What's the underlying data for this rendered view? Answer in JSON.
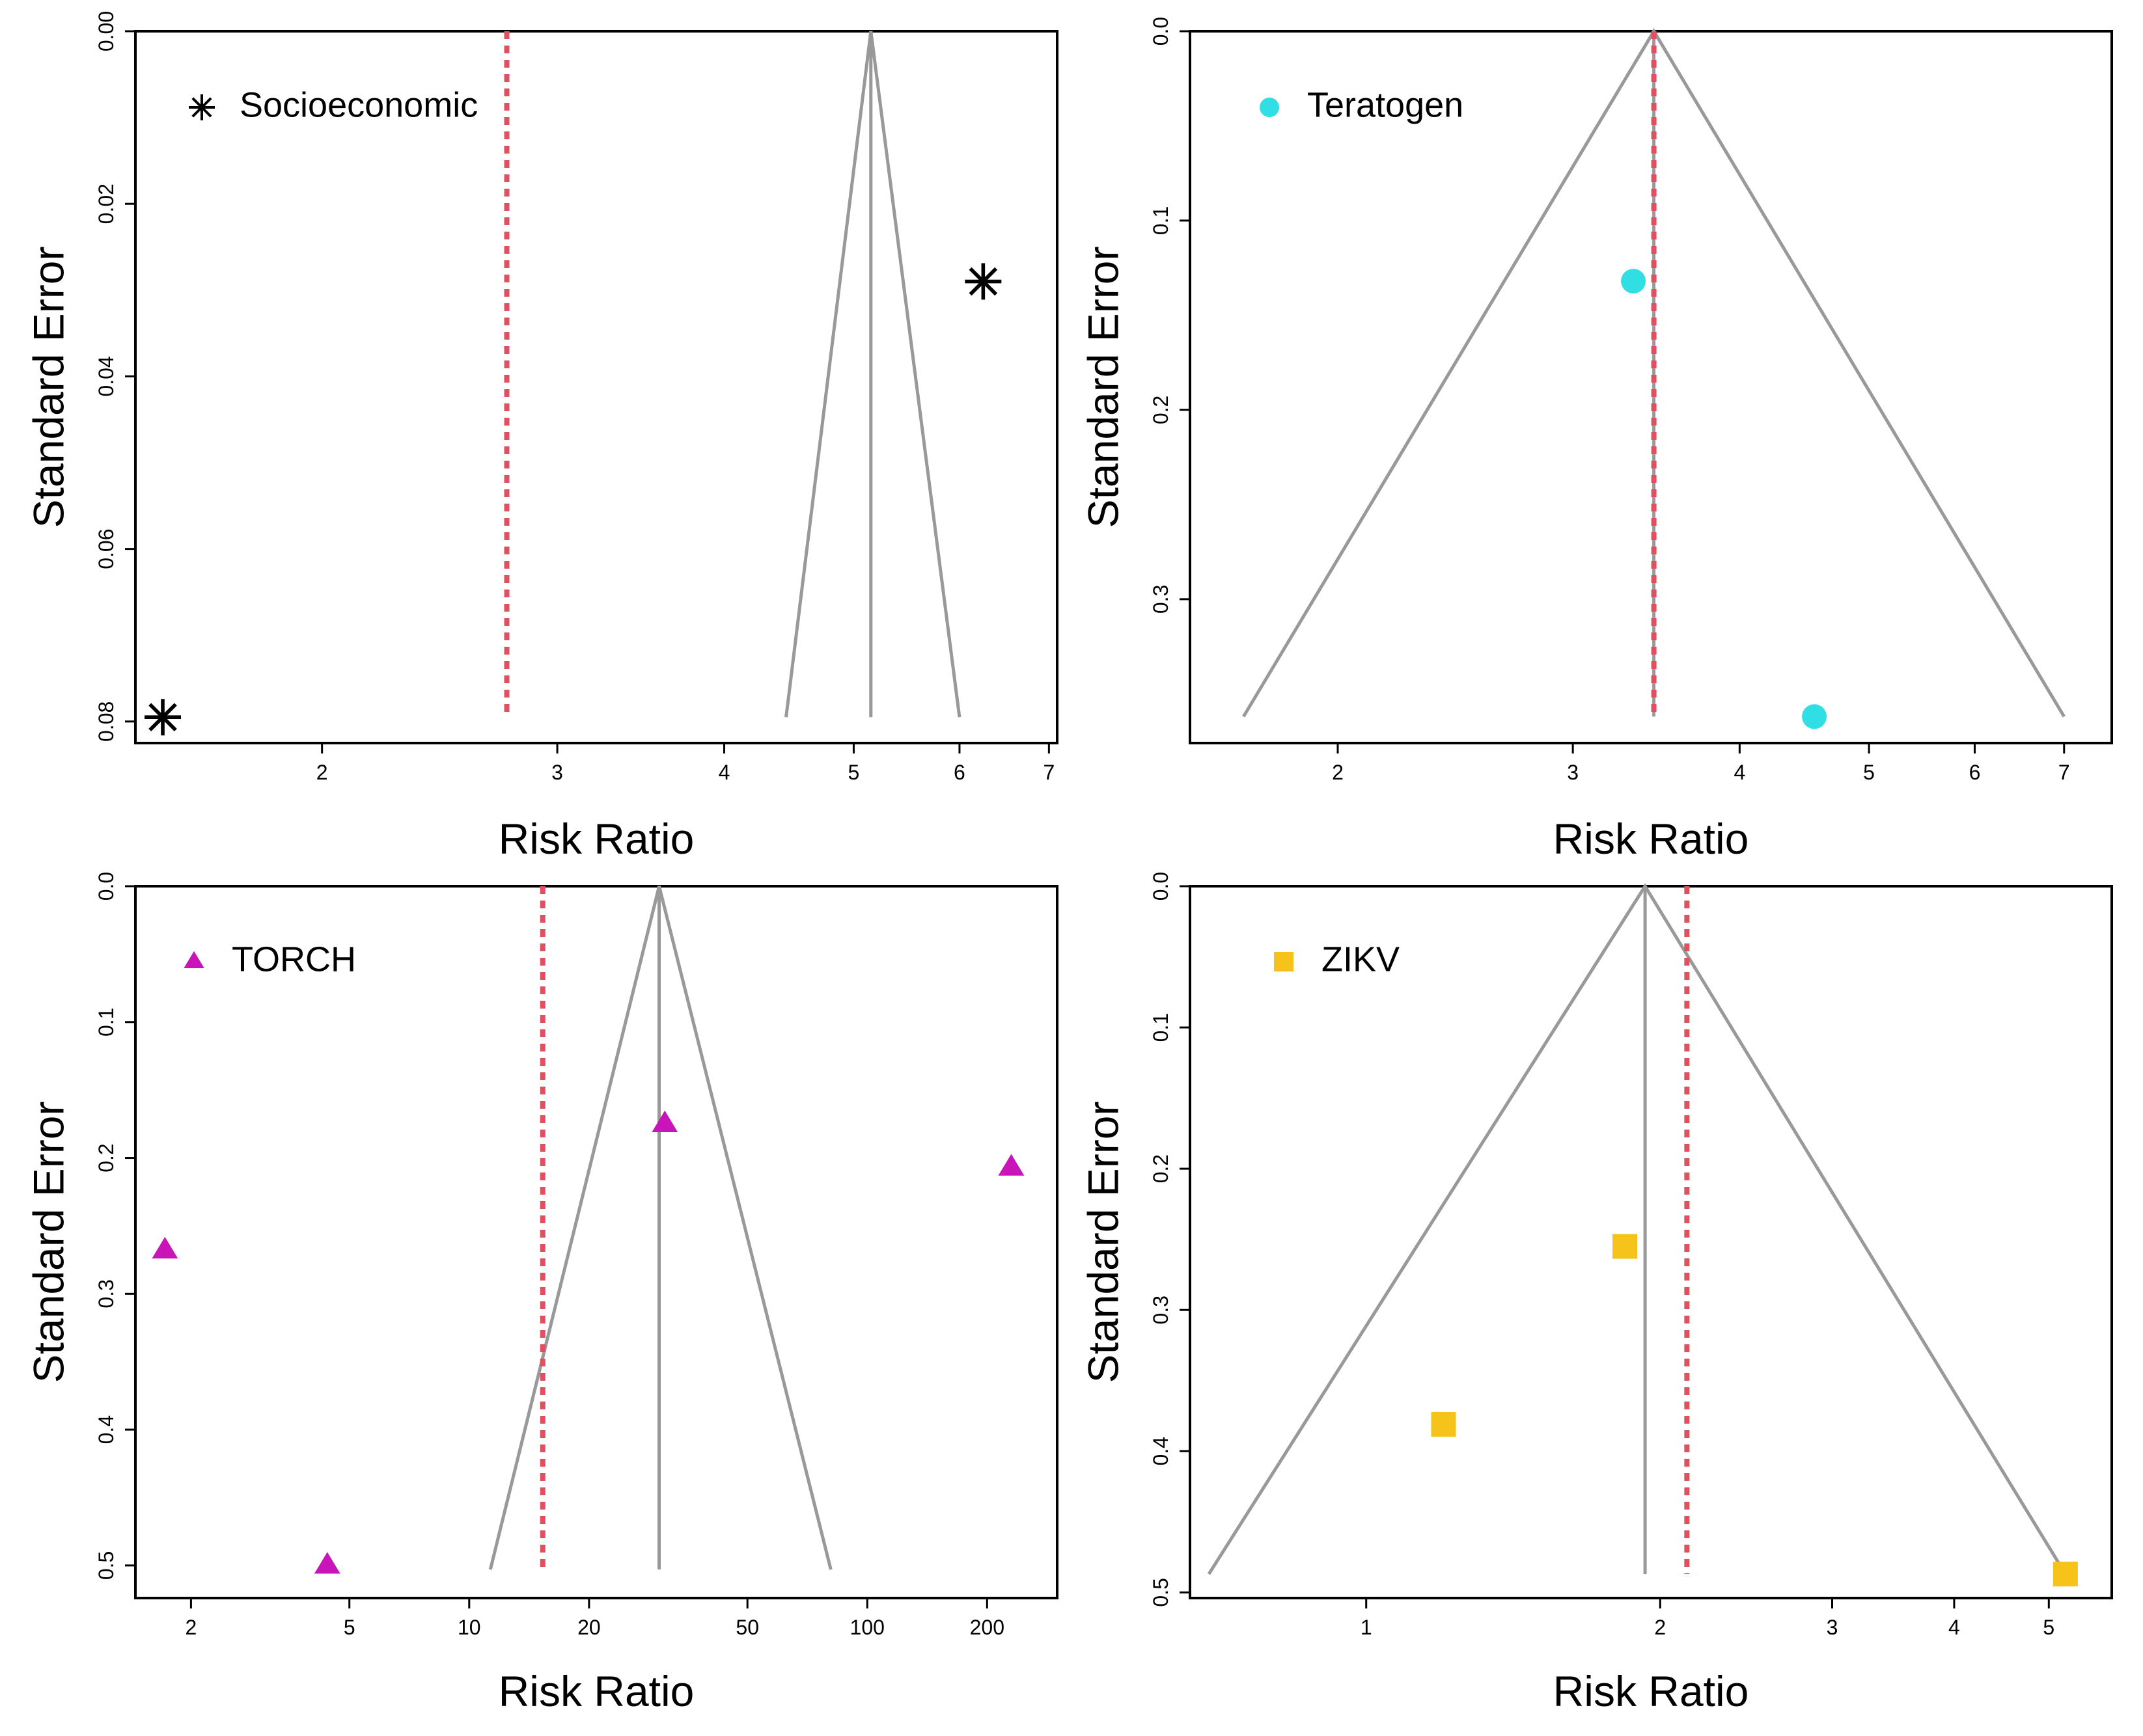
{
  "chart_data": [
    {
      "type": "scatter",
      "subtype": "funnel",
      "xscale": "log",
      "xlabel": "Risk Ratio",
      "ylabel": "Standard Error",
      "xlim": [
        1.45,
        7.1
      ],
      "ylim": [
        0.0825,
        0.0
      ],
      "xticks": [
        2,
        3,
        4,
        5,
        6,
        7
      ],
      "yticks": [
        0.0,
        0.02,
        0.04,
        0.06,
        0.08
      ],
      "ytick_labels": [
        "0.00",
        "0.02",
        "0.04",
        "0.06",
        "0.08"
      ],
      "legend": {
        "label": "Socioeconomic",
        "marker": "asterisk",
        "color": "#000000",
        "placement": "top-left"
      },
      "points": [
        {
          "x": 1.52,
          "y": 0.0795
        },
        {
          "x": 6.25,
          "y": 0.029
        }
      ],
      "funnel": {
        "center": 5.15,
        "base_left": 4.45,
        "base_right": 6.0,
        "se_max": 0.0795,
        "color": "#999999"
      },
      "pooled_line": {
        "x": 2.75,
        "color": "#e0505e",
        "style": "dotted"
      }
    },
    {
      "type": "scatter",
      "subtype": "funnel",
      "xscale": "log",
      "xlabel": "Risk Ratio",
      "ylabel": "Standard Error",
      "xlim": [
        1.55,
        7.6
      ],
      "ylim": [
        0.376,
        0.0
      ],
      "xticks": [
        2,
        3,
        4,
        5,
        6,
        7
      ],
      "yticks": [
        0.0,
        0.1,
        0.2,
        0.3
      ],
      "ytick_labels": [
        "0.0",
        "0.1",
        "0.2",
        "0.3"
      ],
      "legend": {
        "label": "Teratogen",
        "marker": "circle",
        "color": "#30dfe3",
        "placement": "top-left"
      },
      "points": [
        {
          "x": 3.33,
          "y": 0.132
        },
        {
          "x": 4.55,
          "y": 0.362
        }
      ],
      "funnel": {
        "center": 3.45,
        "base_left": 1.7,
        "base_right": 7.0,
        "se_max": 0.362,
        "color": "#999999"
      },
      "pooled_line": {
        "x": 3.45,
        "color": "#e0505e",
        "style": "dotted"
      }
    },
    {
      "type": "scatter",
      "subtype": "funnel",
      "xscale": "log",
      "xlabel": "Risk Ratio",
      "ylabel": "Standard Error",
      "xlim": [
        1.45,
        300
      ],
      "ylim": [
        0.524,
        0.0
      ],
      "xticks": [
        2,
        5,
        10,
        20,
        50,
        100,
        200
      ],
      "yticks": [
        0.0,
        0.1,
        0.2,
        0.3,
        0.4,
        0.5
      ],
      "ytick_labels": [
        "0.0",
        "0.1",
        "0.2",
        "0.3",
        "0.4",
        "0.5"
      ],
      "legend": {
        "label": "TORCH",
        "marker": "triangle",
        "color": "#c814b9",
        "placement": "top-left"
      },
      "points": [
        {
          "x": 31,
          "y": 0.175
        },
        {
          "x": 230,
          "y": 0.207
        },
        {
          "x": 1.72,
          "y": 0.268
        },
        {
          "x": 4.4,
          "y": 0.5
        }
      ],
      "funnel": {
        "center": 30,
        "base_left": 11.3,
        "base_right": 81,
        "se_max": 0.503,
        "color": "#999999"
      },
      "pooled_line": {
        "x": 15.3,
        "color": "#e0505e",
        "style": "dotted"
      }
    },
    {
      "type": "scatter",
      "subtype": "funnel",
      "xscale": "log",
      "xlabel": "Risk Ratio",
      "ylabel": "Standard Error",
      "xlim": [
        0.66,
        5.8
      ],
      "ylim": [
        0.504,
        0.0
      ],
      "xticks": [
        1,
        2,
        3,
        4,
        5
      ],
      "yticks": [
        0.0,
        0.1,
        0.2,
        0.3,
        0.4,
        0.5
      ],
      "ytick_labels": [
        "0.0",
        "0.1",
        "0.2",
        "0.3",
        "0.4",
        "0.5"
      ],
      "legend": {
        "label": "ZIKV",
        "marker": "square",
        "color": "#f5c31a",
        "placement": "top-left"
      },
      "points": [
        {
          "x": 1.84,
          "y": 0.255
        },
        {
          "x": 1.2,
          "y": 0.381
        },
        {
          "x": 5.2,
          "y": 0.487
        }
      ],
      "funnel": {
        "center": 1.93,
        "base_left": 0.69,
        "base_right": 5.2,
        "se_max": 0.487,
        "color": "#999999"
      },
      "pooled_line": {
        "x": 2.13,
        "color": "#e0505e",
        "style": "dotted"
      }
    }
  ]
}
